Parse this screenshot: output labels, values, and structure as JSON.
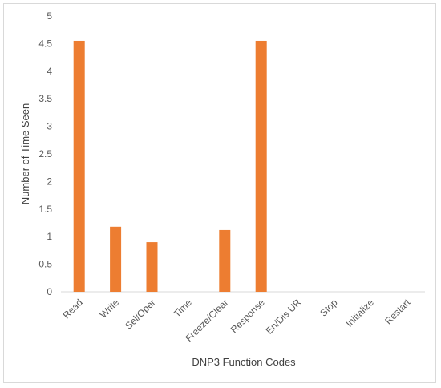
{
  "chart_data": {
    "type": "bar",
    "title": "",
    "xlabel": "DNP3 Function Codes",
    "ylabel": "Number of  Time Seen",
    "categories": [
      "Read",
      "Write",
      "Sel/Oper",
      "Time",
      "Freeze/Clear",
      "Response",
      "En/Dis UR",
      "Stop",
      "Initialize",
      "Restart"
    ],
    "values": [
      4.55,
      1.18,
      0.9,
      0,
      1.12,
      4.55,
      0,
      0,
      0,
      0
    ],
    "ylim": [
      0,
      5
    ],
    "yticks": [
      "0",
      "0.5",
      "1",
      "1.5",
      "2",
      "2.5",
      "3",
      "3.5",
      "4",
      "4.5",
      "5"
    ],
    "grid": false,
    "legend": "none",
    "bar_color": "#ED7D31",
    "axis_color": "#d9d9d9"
  }
}
